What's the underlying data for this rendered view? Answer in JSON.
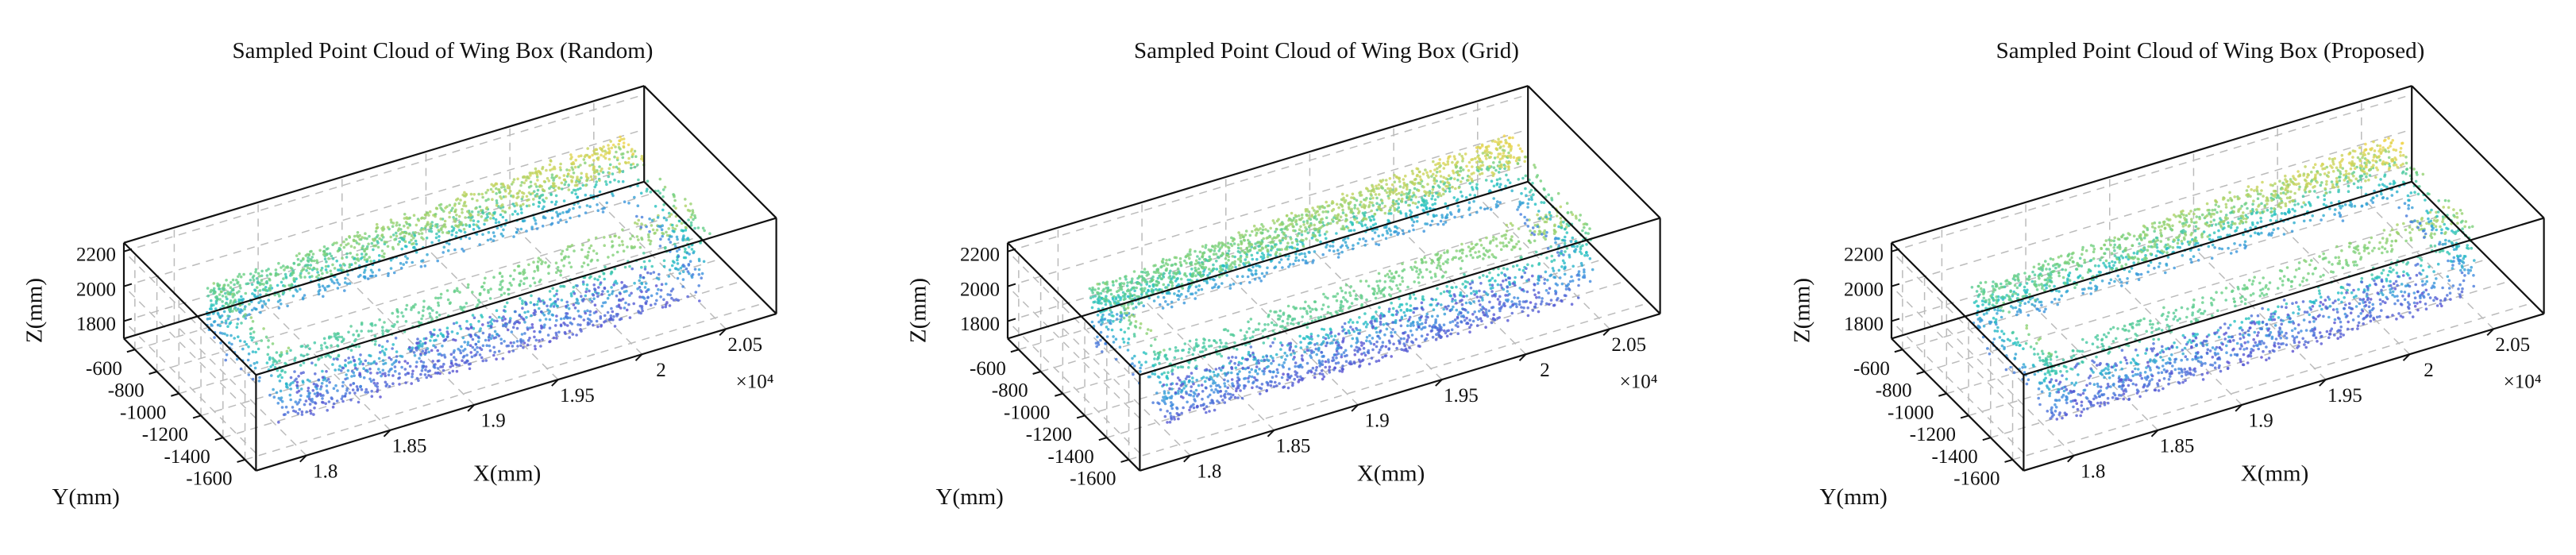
{
  "chart_data": [
    {
      "type": "scatter3d",
      "title": "Sampled Point Cloud of Wing Box (Random)",
      "xlabel": "X(mm)",
      "ylabel": "Y(mm)",
      "zlabel": "Z(mm)",
      "x_multiplier": "×10⁴",
      "xlim": [
        1.77,
        2.08
      ],
      "xticks": [
        1.8,
        1.85,
        1.9,
        1.95,
        2,
        2.05
      ],
      "ylim": [
        -1700,
        -500
      ],
      "yticks": [
        -600,
        -800,
        -1000,
        -1200,
        -1400,
        -1600
      ],
      "zlim": [
        1700,
        2250
      ],
      "zticks": [
        1800,
        2000,
        2200
      ],
      "grid": true
    },
    {
      "type": "scatter3d",
      "title": "Sampled Point Cloud of Wing Box (Grid)",
      "xlabel": "X(mm)",
      "ylabel": "Y(mm)",
      "zlabel": "Z(mm)",
      "x_multiplier": "×10⁴",
      "xlim": [
        1.77,
        2.08
      ],
      "xticks": [
        1.8,
        1.85,
        1.9,
        1.95,
        2,
        2.05
      ],
      "ylim": [
        -1700,
        -500
      ],
      "yticks": [
        -600,
        -800,
        -1000,
        -1200,
        -1400,
        -1600
      ],
      "zlim": [
        1700,
        2250
      ],
      "zticks": [
        1800,
        2000,
        2200
      ],
      "grid": true
    },
    {
      "type": "scatter3d",
      "title": "Sampled Point Cloud of Wing Box (Proposed)",
      "xlabel": "X(mm)",
      "ylabel": "Y(mm)",
      "zlabel": "Z(mm)",
      "x_multiplier": "×10⁴",
      "xlim": [
        1.77,
        2.08
      ],
      "xticks": [
        1.8,
        1.85,
        1.9,
        1.95,
        2,
        2.05
      ],
      "ylim": [
        -1700,
        -500
      ],
      "yticks": [
        -600,
        -800,
        -1000,
        -1200,
        -1400,
        -1600
      ],
      "zlim": [
        1700,
        2250
      ],
      "zticks": [
        1800,
        2000,
        2200
      ],
      "grid": true
    }
  ]
}
